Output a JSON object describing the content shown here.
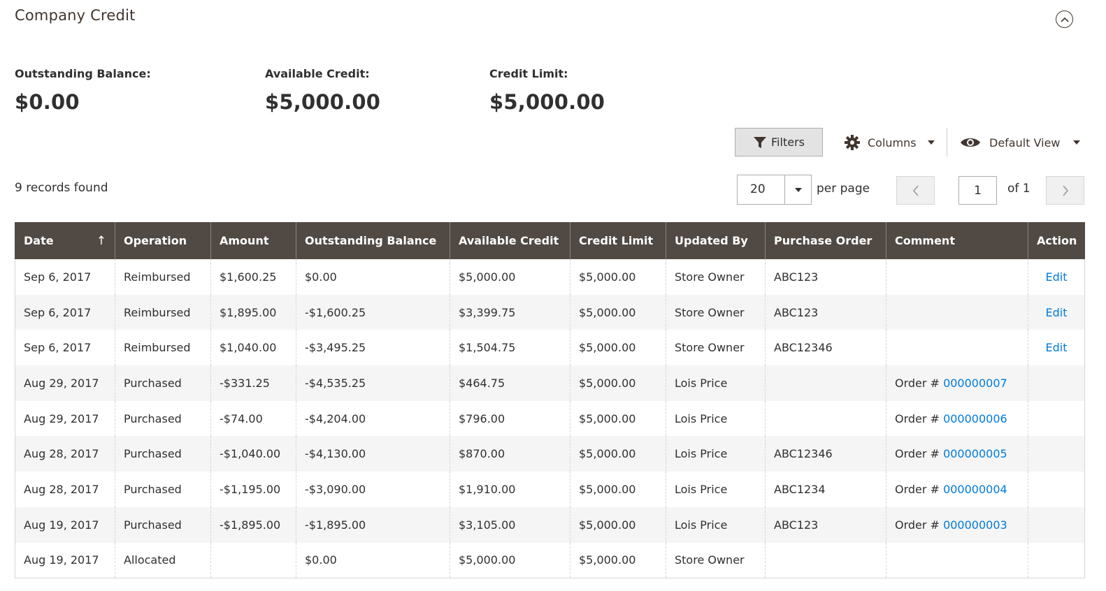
{
  "section": {
    "title": "Company Credit"
  },
  "stats": {
    "outstanding_label": "Outstanding Balance:",
    "outstanding_value": "$0.00",
    "available_label": "Available Credit:",
    "available_value": "$5,000.00",
    "limit_label": "Credit Limit:",
    "limit_value": "$5,000.00"
  },
  "toolbar": {
    "filters_label": "Filters",
    "columns_label": "Columns",
    "view_label": "Default View"
  },
  "records_found": "9 records found",
  "pagination": {
    "per_page_value": "20",
    "per_page_label": "per page",
    "current_page": "1",
    "of_label": "of 1"
  },
  "columns": [
    "Date",
    "Operation",
    "Amount",
    "Outstanding Balance",
    "Available Credit",
    "Credit Limit",
    "Updated By",
    "Purchase Order",
    "Comment",
    "Action"
  ],
  "order_prefix": "Order #",
  "rows": [
    {
      "date": "Sep 6, 2017",
      "operation": "Reimbursed",
      "amount": "$1,600.25",
      "outstanding": "$0.00",
      "available": "$5,000.00",
      "limit": "$5,000.00",
      "updated_by": "Store Owner",
      "po": "ABC123",
      "order": "",
      "action": "Edit"
    },
    {
      "date": "Sep 6, 2017",
      "operation": "Reimbursed",
      "amount": "$1,895.00",
      "outstanding": "-$1,600.25",
      "available": "$3,399.75",
      "limit": "$5,000.00",
      "updated_by": "Store Owner",
      "po": "ABC123",
      "order": "",
      "action": "Edit"
    },
    {
      "date": "Sep 6, 2017",
      "operation": "Reimbursed",
      "amount": "$1,040.00",
      "outstanding": "-$3,495.25",
      "available": "$1,504.75",
      "limit": "$5,000.00",
      "updated_by": "Store Owner",
      "po": "ABC12346",
      "order": "",
      "action": "Edit"
    },
    {
      "date": "Aug 29, 2017",
      "operation": "Purchased",
      "amount": "-$331.25",
      "outstanding": "-$4,535.25",
      "available": "$464.75",
      "limit": "$5,000.00",
      "updated_by": "Lois Price",
      "po": "",
      "order": "000000007",
      "action": ""
    },
    {
      "date": "Aug 29, 2017",
      "operation": "Purchased",
      "amount": "-$74.00",
      "outstanding": "-$4,204.00",
      "available": "$796.00",
      "limit": "$5,000.00",
      "updated_by": "Lois Price",
      "po": "",
      "order": "000000006",
      "action": ""
    },
    {
      "date": "Aug 28, 2017",
      "operation": "Purchased",
      "amount": "-$1,040.00",
      "outstanding": "-$4,130.00",
      "available": "$870.00",
      "limit": "$5,000.00",
      "updated_by": "Lois Price",
      "po": "ABC12346",
      "order": "000000005",
      "action": ""
    },
    {
      "date": "Aug 28, 2017",
      "operation": "Purchased",
      "amount": "-$1,195.00",
      "outstanding": "-$3,090.00",
      "available": "$1,910.00",
      "limit": "$5,000.00",
      "updated_by": "Lois Price",
      "po": "ABC1234",
      "order": "000000004",
      "action": ""
    },
    {
      "date": "Aug 19, 2017",
      "operation": "Purchased",
      "amount": "-$1,895.00",
      "outstanding": "-$1,895.00",
      "available": "$3,105.00",
      "limit": "$5,000.00",
      "updated_by": "Lois Price",
      "po": "ABC123",
      "order": "000000003",
      "action": ""
    },
    {
      "date": "Aug 19, 2017",
      "operation": "Allocated",
      "amount": "",
      "outstanding": "$0.00",
      "available": "$5,000.00",
      "limit": "$5,000.00",
      "updated_by": "Store Owner",
      "po": "",
      "order": "",
      "action": ""
    }
  ],
  "icons": {
    "collapse": "chevron-up-circle-icon",
    "filter": "funnel-icon",
    "columns": "gear-icon",
    "view": "eye-icon",
    "sort": "sort-ascending-icon"
  },
  "colors": {
    "header_bg": "#514943",
    "link": "#007bdb",
    "stripe": "#f5f5f5"
  }
}
